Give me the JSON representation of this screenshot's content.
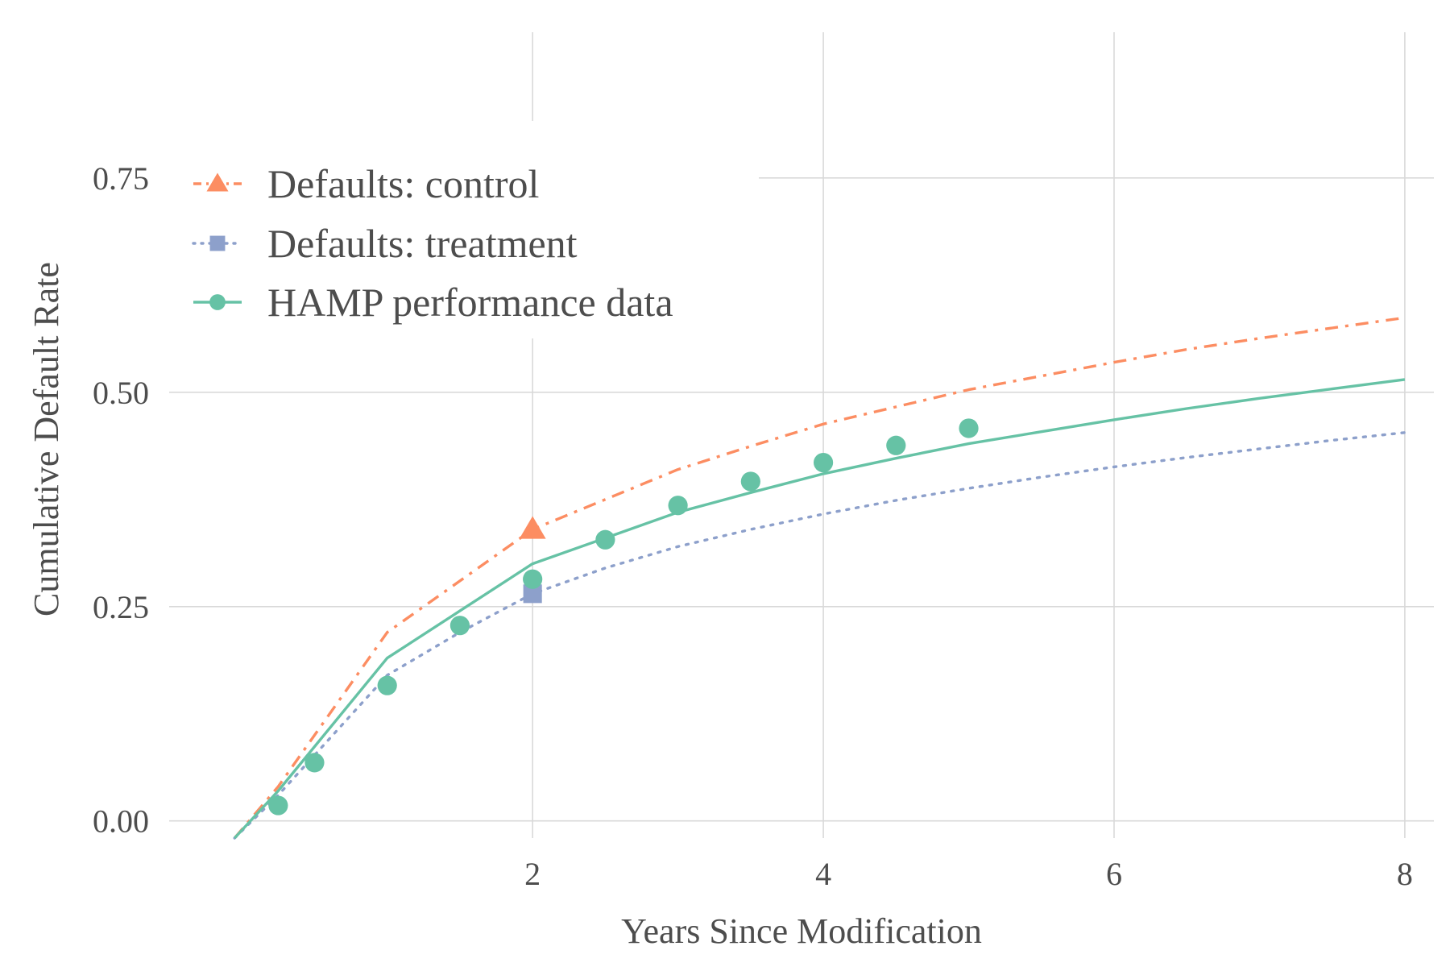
{
  "chart_data": {
    "type": "line",
    "title": "",
    "xlabel": "Years Since Modification",
    "ylabel": "Cumulative Default Rate",
    "xlim": [
      -0.5,
      8.2
    ],
    "ylim": [
      -0.02,
      0.92
    ],
    "x_ticks": [
      2,
      4,
      6,
      8
    ],
    "x_tick_labels": [
      "2",
      "4",
      "6",
      "8"
    ],
    "y_ticks": [
      0,
      0.25,
      0.5,
      0.75
    ],
    "y_tick_labels": [
      "0.00",
      "0.25",
      "0.50",
      "0.75"
    ],
    "grid": true,
    "legend_position": "top-left",
    "series": [
      {
        "name": "Defaults: control",
        "style": "dashdot",
        "marker": "triangle",
        "color": "#fc8d62",
        "x": [
          -0.05,
          0.25,
          1.0,
          1.5,
          2.0,
          2.5,
          3.0,
          3.5,
          4.0,
          4.5,
          5.0,
          5.5,
          6.0,
          6.5,
          7.0,
          7.5,
          8.0
        ],
        "y": [
          -0.02,
          0.04,
          0.22,
          0.28,
          0.34,
          0.375,
          0.41,
          0.437,
          0.463,
          0.483,
          0.503,
          0.519,
          0.535,
          0.55,
          0.563,
          0.575,
          0.587
        ],
        "marker_points": [
          {
            "x": 2.0,
            "y": 0.34
          }
        ]
      },
      {
        "name": "Defaults: treatment",
        "style": "dotted",
        "marker": "square",
        "color": "#8da0cb",
        "x": [
          -0.05,
          0.25,
          1.0,
          1.5,
          2.0,
          2.5,
          3.0,
          3.5,
          4.0,
          4.5,
          5.0,
          5.5,
          6.0,
          6.5,
          7.0,
          7.5,
          8.0
        ],
        "y": [
          -0.02,
          0.03,
          0.17,
          0.22,
          0.265,
          0.295,
          0.32,
          0.34,
          0.358,
          0.374,
          0.388,
          0.401,
          0.413,
          0.424,
          0.434,
          0.444,
          0.453
        ],
        "marker_points": [
          {
            "x": 2.0,
            "y": 0.265
          }
        ]
      },
      {
        "name": "HAMP performance data",
        "style": "solid",
        "marker": "circle",
        "color": "#66c2a5",
        "x": [
          -0.05,
          0.25,
          1.0,
          1.5,
          2.0,
          2.5,
          3.0,
          3.5,
          4.0,
          4.5,
          5.0,
          5.5,
          6.0,
          6.5,
          7.0,
          7.5,
          8.0
        ],
        "y": [
          -0.02,
          0.035,
          0.19,
          0.245,
          0.3,
          0.33,
          0.36,
          0.383,
          0.405,
          0.423,
          0.44,
          0.454,
          0.468,
          0.481,
          0.493,
          0.504,
          0.515
        ],
        "marker_points": [
          {
            "x": 0.25,
            "y": 0.018
          },
          {
            "x": 0.5,
            "y": 0.068
          },
          {
            "x": 1.0,
            "y": 0.158
          },
          {
            "x": 1.5,
            "y": 0.228
          },
          {
            "x": 2.0,
            "y": 0.282
          },
          {
            "x": 2.5,
            "y": 0.328
          },
          {
            "x": 3.0,
            "y": 0.368
          },
          {
            "x": 3.5,
            "y": 0.396
          },
          {
            "x": 4.0,
            "y": 0.418
          },
          {
            "x": 4.5,
            "y": 0.438
          },
          {
            "x": 5.0,
            "y": 0.458
          }
        ]
      }
    ]
  }
}
